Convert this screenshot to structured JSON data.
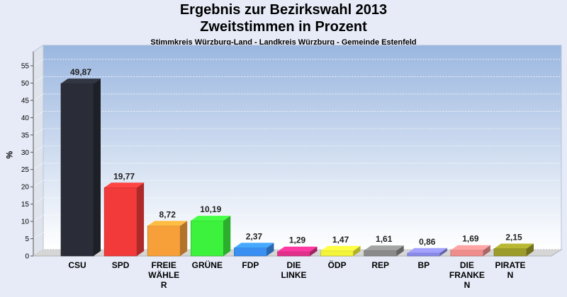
{
  "chart_data": {
    "type": "bar",
    "title": "Ergebnis zur Bezirkswahl 2013",
    "title2": "Zweitstimmen in Prozent",
    "subtitle": "Stimmkreis Würzburg-Land - Landkreis Würzburg - Gemeinde Estenfeld",
    "ylabel": "%",
    "xlabel": "",
    "ylim": [
      0,
      55
    ],
    "yticks": [
      0,
      5,
      10,
      15,
      20,
      25,
      30,
      35,
      40,
      45,
      50,
      55
    ],
    "grid": true,
    "categories": [
      [
        "CSU"
      ],
      [
        "SPD"
      ],
      [
        "FREIE",
        "WÄHLE",
        "R"
      ],
      [
        "GRÜNE"
      ],
      [
        "FDP"
      ],
      [
        "DIE",
        "LINKE"
      ],
      [
        "ÖDP"
      ],
      [
        "REP"
      ],
      [
        "BP"
      ],
      [
        "DIE",
        "FRANKE",
        "N"
      ],
      [
        "PIRATE",
        "N"
      ]
    ],
    "values": [
      49.87,
      19.77,
      8.72,
      10.19,
      2.37,
      1.29,
      1.47,
      1.61,
      0.86,
      1.69,
      2.15
    ],
    "value_labels": [
      "49,87",
      "19,77",
      "8,72",
      "10,19",
      "2,37",
      "1,29",
      "1,47",
      "1,61",
      "0,86",
      "1,69",
      "2,15"
    ],
    "colors": [
      "#2a2d38",
      "#f23a3a",
      "#f7a03a",
      "#3cf23c",
      "#3a8ff2",
      "#e0308a",
      "#f4f43a",
      "#8a8a8a",
      "#8a8ae8",
      "#ef8c8c",
      "#9c9c2c"
    ]
  }
}
